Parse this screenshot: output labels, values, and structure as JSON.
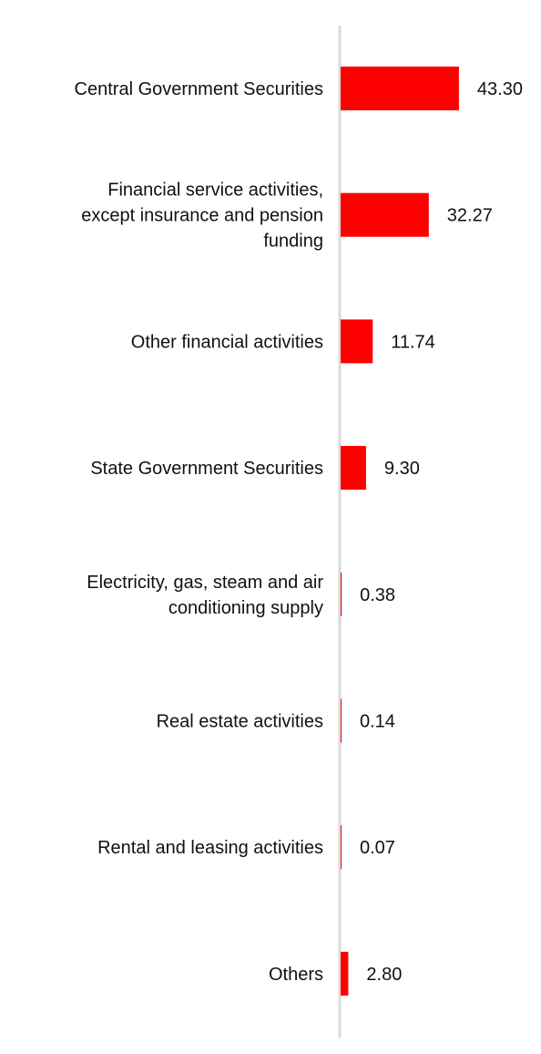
{
  "chart_data": {
    "type": "bar",
    "orientation": "horizontal",
    "categories": [
      "Central Government Securities",
      "Financial service activities, except insurance and pension funding",
      "Other financial activities",
      "State Government Securities",
      "Electricity, gas, steam and air conditioning supply",
      "Real estate activities",
      "Rental and leasing activities",
      "Others"
    ],
    "category_lines": [
      [
        "Central Government Securities"
      ],
      [
        "Financial service activities,",
        "except insurance and pension",
        "funding"
      ],
      [
        "Other financial activities"
      ],
      [
        "State Government Securities"
      ],
      [
        "Electricity, gas, steam and air",
        "conditioning supply"
      ],
      [
        "Real estate activities"
      ],
      [
        "Rental and leasing activities"
      ],
      [
        "Others"
      ]
    ],
    "values": [
      43.3,
      32.27,
      11.74,
      9.3,
      0.38,
      0.14,
      0.07,
      2.8
    ],
    "value_labels": [
      "43.30",
      "32.27",
      "11.74",
      "9.30",
      "0.38",
      "0.14",
      "0.07",
      "2.80"
    ],
    "xlim": [
      0,
      100
    ],
    "bar_color": "#ff0000",
    "axis_color": "#d9d9d9",
    "grid": false,
    "legend": "none"
  }
}
